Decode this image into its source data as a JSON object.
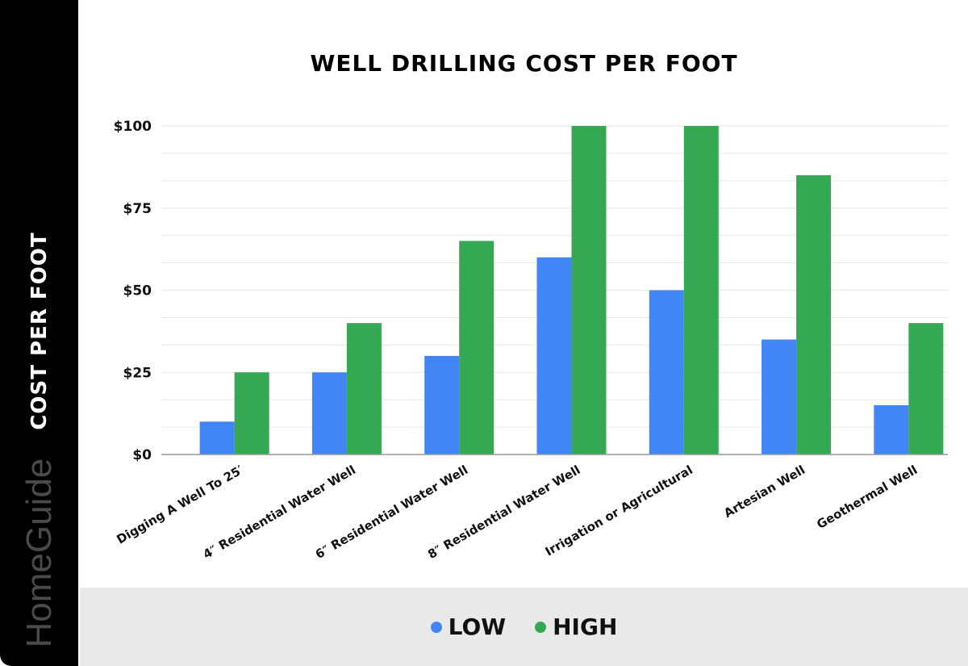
{
  "brand": "HomeGuide",
  "chart_data": {
    "type": "bar",
    "title": "WELL DRILLING COST PER FOOT",
    "ylabel": "COST PER FOOT",
    "xlabel": "",
    "categories": [
      "Digging A Well To 25′",
      "4″ Residential Water Well",
      "6″ Residential Water Well",
      "8″ Residential Water Well",
      "Irrigation or Agricultural",
      "Artesian Well",
      "Geothermal Well"
    ],
    "series": [
      {
        "name": "LOW",
        "color": "#4285f4",
        "values": [
          10,
          25,
          30,
          60,
          50,
          35,
          15
        ]
      },
      {
        "name": "HIGH",
        "color": "#34a853",
        "values": [
          25,
          40,
          65,
          100,
          100,
          85,
          40
        ]
      }
    ],
    "ylim": [
      0,
      100
    ],
    "yticks": [
      "$0",
      "$25",
      "$50",
      "$75",
      "$100"
    ],
    "grid": true,
    "legend": "bottom"
  }
}
